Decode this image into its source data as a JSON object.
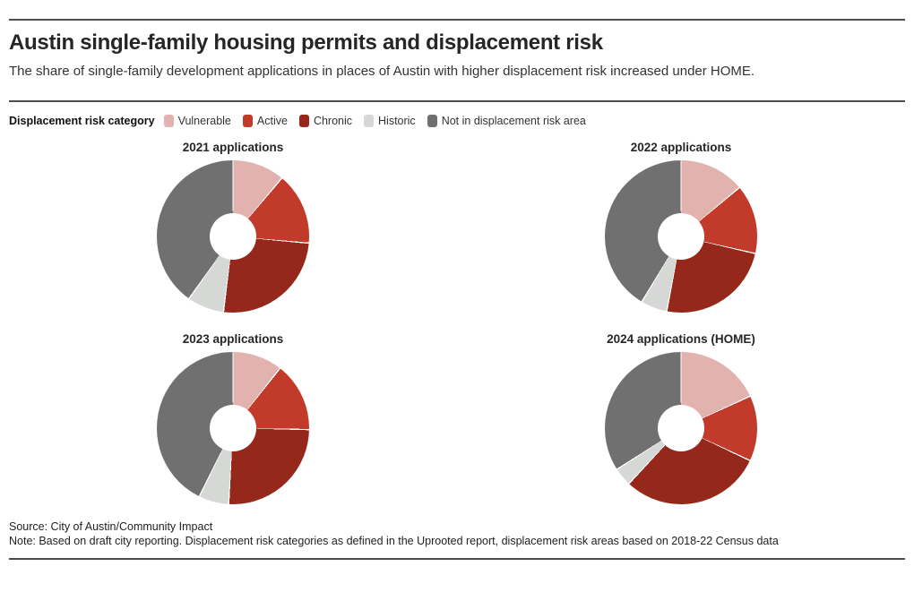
{
  "header": {
    "title": "Austin single-family housing permits and displacement risk",
    "subtitle": "The share of single-family development applications in places of Austin with higher displacement risk increased under HOME."
  },
  "legend": {
    "label": "Displacement risk category",
    "categories": [
      {
        "name": "Vulnerable",
        "color": "#e2b2af"
      },
      {
        "name": "Active",
        "color": "#c23a2a"
      },
      {
        "name": "Chronic",
        "color": "#96271b"
      },
      {
        "name": "Historic",
        "color": "#d6d8d6"
      },
      {
        "name": "Not in displacement risk area",
        "color": "#707070"
      }
    ]
  },
  "chart_data": [
    {
      "type": "pie",
      "title": "2021 applications",
      "categories": [
        "Vulnerable",
        "Active",
        "Chronic",
        "Historic",
        "Not in displacement risk area"
      ],
      "values_pct": [
        11.1,
        15.3,
        25.6,
        7.8,
        40.2
      ],
      "start_angle_deg": 0,
      "direction": "clockwise",
      "donut": true,
      "legend_position": "top"
    },
    {
      "type": "pie",
      "title": "2022 applications",
      "categories": [
        "Vulnerable",
        "Active",
        "Chronic",
        "Historic",
        "Not in displacement risk area"
      ],
      "values_pct": [
        13.9,
        14.7,
        24.4,
        5.6,
        41.4
      ],
      "start_angle_deg": 0,
      "direction": "clockwise",
      "donut": true,
      "legend_position": "top"
    },
    {
      "type": "pie",
      "title": "2023 applications",
      "categories": [
        "Vulnerable",
        "Active",
        "Chronic",
        "Historic",
        "Not in displacement risk area"
      ],
      "values_pct": [
        10.6,
        14.7,
        25.6,
        6.4,
        42.7
      ],
      "start_angle_deg": 0,
      "direction": "clockwise",
      "donut": true,
      "legend_position": "top"
    },
    {
      "type": "pie",
      "title": "2024 applications (HOME)",
      "categories": [
        "Vulnerable",
        "Active",
        "Chronic",
        "Historic",
        "Not in displacement risk area"
      ],
      "values_pct": [
        18.1,
        13.9,
        30.0,
        3.9,
        34.1
      ],
      "start_angle_deg": 0,
      "direction": "clockwise",
      "donut": true,
      "legend_position": "top"
    }
  ],
  "footer": {
    "source": "Source: City of Austin/Community Impact",
    "note": "Note: Based on draft city reporting. Displacement risk categories as defined in the Uprooted report, displacement risk areas based on 2018-22 Census data"
  }
}
